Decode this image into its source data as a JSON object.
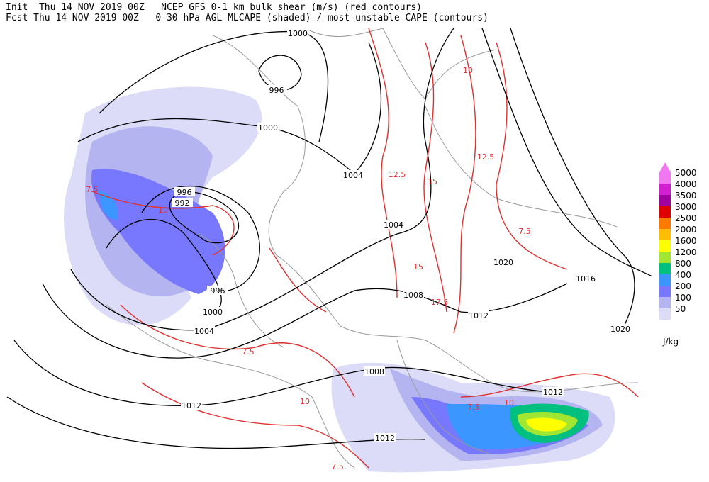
{
  "header": {
    "line1": "Init  Thu 14 NOV 2019 00Z   NCEP GFS 0-1 km bulk shear (m/s) (red contours)",
    "line2": "Fcst Thu 14 NOV 2019 00Z   0-30 hPa AGL MLCAPE (shaded) / most-unstable CAPE (contours)"
  },
  "legend": {
    "unit": "J/kg",
    "levels": [
      {
        "value": 5000,
        "color": "#f078f0"
      },
      {
        "value": 4000,
        "color": "#d020d0"
      },
      {
        "value": 3500,
        "color": "#a000a0"
      },
      {
        "value": 3000,
        "color": "#e00000"
      },
      {
        "value": 2500,
        "color": "#ff7800"
      },
      {
        "value": 2000,
        "color": "#ffbe00"
      },
      {
        "value": 1600,
        "color": "#ffff00"
      },
      {
        "value": 1200,
        "color": "#a0e632"
      },
      {
        "value": 800,
        "color": "#00c080"
      },
      {
        "value": 400,
        "color": "#3c96ff"
      },
      {
        "value": 200,
        "color": "#7878ff"
      },
      {
        "value": 100,
        "color": "#b4b4f0"
      },
      {
        "value": 50,
        "color": "#dcdcf8"
      }
    ]
  },
  "map": {
    "isobar_labels": [
      "1000",
      "996",
      "1000",
      "1004",
      "996",
      "992",
      "1004",
      "1020",
      "1016",
      "1008",
      "996",
      "1000",
      "1012",
      "1004",
      "1020",
      "1008",
      "1012",
      "1012",
      "1012"
    ],
    "shear_labels": [
      "7.5",
      "10",
      "12.5",
      "7.5",
      "15",
      "7.5",
      "10",
      "7.5",
      "10",
      "7.5",
      "12.5",
      "10",
      "17.5",
      "15"
    ]
  }
}
